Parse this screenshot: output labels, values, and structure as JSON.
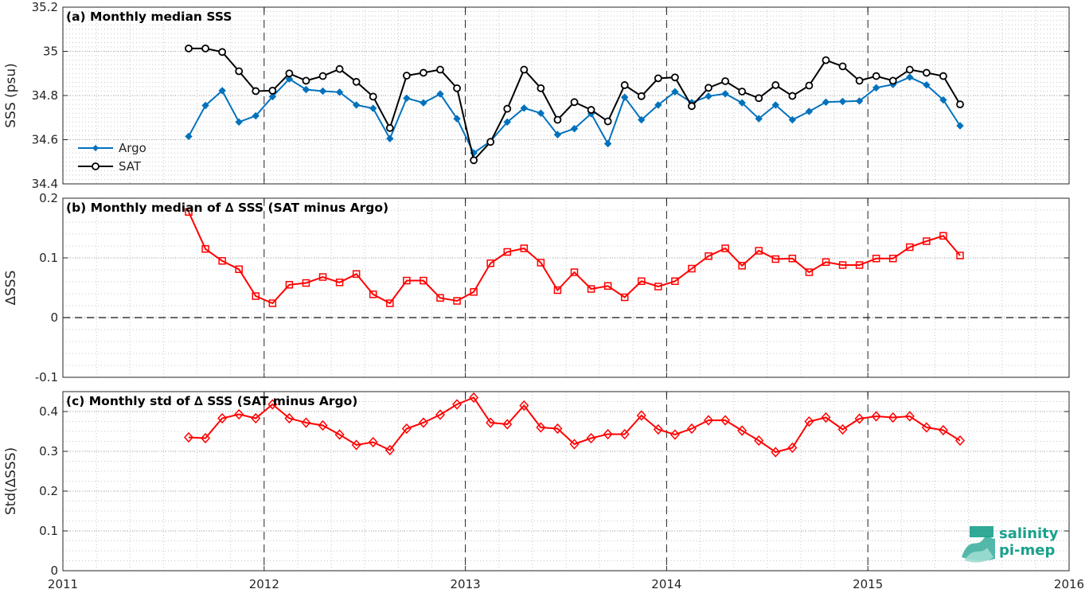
{
  "chart_data": [
    {
      "type": "line",
      "title": "(a) Monthly median SSS",
      "ylabel": "SSS (psu)",
      "ylim": [
        34.4,
        35.2
      ],
      "yticks": [
        "34.4",
        "34.6",
        "34.8",
        "35",
        "35.2"
      ],
      "xlim": [
        2011,
        2016
      ],
      "legend_position": "lower-left",
      "x_start": 2011.625,
      "x_step_years": 0.08333,
      "series": [
        {
          "name": "Argo",
          "color": "#0072BD",
          "marker": "diamond-filled",
          "values": [
            34.615,
            34.755,
            34.822,
            34.68,
            34.708,
            34.795,
            34.875,
            34.827,
            34.82,
            34.815,
            34.757,
            34.742,
            34.605,
            34.788,
            34.767,
            34.807,
            34.695,
            34.54,
            34.593,
            34.68,
            34.743,
            34.72,
            34.623,
            34.65,
            34.718,
            34.582,
            34.792,
            34.69,
            34.757,
            34.817,
            34.768,
            34.797,
            34.808,
            34.767,
            34.695,
            34.757,
            34.69,
            34.728,
            34.77,
            34.773,
            34.775,
            34.835,
            34.85,
            34.883,
            34.848,
            34.78,
            34.663
          ]
        },
        {
          "name": "SAT",
          "color": "#000000",
          "marker": "circle-open",
          "values": [
            35.013,
            35.013,
            34.997,
            34.91,
            34.82,
            34.822,
            34.9,
            34.867,
            34.888,
            34.92,
            34.862,
            34.795,
            34.653,
            34.89,
            34.903,
            34.917,
            34.833,
            34.507,
            34.59,
            34.74,
            34.917,
            34.833,
            34.69,
            34.77,
            34.735,
            34.683,
            34.847,
            34.797,
            34.878,
            34.882,
            34.752,
            34.835,
            34.865,
            34.818,
            34.788,
            34.847,
            34.798,
            34.845,
            34.96,
            34.932,
            34.867,
            34.888,
            34.867,
            34.917,
            34.903,
            34.888,
            34.76
          ]
        }
      ]
    },
    {
      "type": "line",
      "title": "(b) Monthly median of ∆ SSS (SAT minus Argo)",
      "ylabel": "∆SSS",
      "ylim": [
        -0.1,
        0.2
      ],
      "yticks": [
        "-0.1",
        "0",
        "0.1",
        "0.2"
      ],
      "xlim": [
        2011,
        2016
      ],
      "x_start": 2011.625,
      "x_step_years": 0.08333,
      "series": [
        {
          "color": "#FF0000",
          "marker": "square-open",
          "values": [
            0.177,
            0.115,
            0.095,
            0.081,
            0.036,
            0.024,
            0.055,
            0.058,
            0.068,
            0.059,
            0.073,
            0.039,
            0.024,
            0.062,
            0.062,
            0.033,
            0.028,
            0.043,
            0.091,
            0.11,
            0.116,
            0.092,
            0.046,
            0.076,
            0.048,
            0.053,
            0.034,
            0.061,
            0.052,
            0.061,
            0.082,
            0.103,
            0.116,
            0.087,
            0.112,
            0.098,
            0.099,
            0.076,
            0.093,
            0.088,
            0.088,
            0.099,
            0.099,
            0.118,
            0.128,
            0.137,
            0.104
          ]
        }
      ]
    },
    {
      "type": "line",
      "title": "(c) Monthly std of ∆ SSS (SAT minus Argo)",
      "ylabel": "Std(∆SSS)",
      "ylim": [
        0,
        0.45
      ],
      "yticks": [
        "0",
        "0.1",
        "0.2",
        "0.3",
        "0.4"
      ],
      "xlim": [
        2011,
        2016
      ],
      "xticks": [
        "2011",
        "2012",
        "2013",
        "2014",
        "2015",
        "2016"
      ],
      "x_start": 2011.625,
      "x_step_years": 0.08333,
      "series": [
        {
          "color": "#FF0000",
          "marker": "diamond-open",
          "values": [
            0.335,
            0.333,
            0.383,
            0.393,
            0.383,
            0.418,
            0.383,
            0.372,
            0.365,
            0.342,
            0.316,
            0.323,
            0.303,
            0.357,
            0.372,
            0.392,
            0.418,
            0.435,
            0.372,
            0.368,
            0.415,
            0.36,
            0.357,
            0.318,
            0.333,
            0.343,
            0.343,
            0.39,
            0.355,
            0.342,
            0.357,
            0.378,
            0.378,
            0.352,
            0.327,
            0.298,
            0.309,
            0.375,
            0.385,
            0.355,
            0.382,
            0.388,
            0.385,
            0.388,
            0.36,
            0.353,
            0.327
          ]
        }
      ]
    }
  ],
  "logo": {
    "line1": "salinity",
    "line2": "pi-mep",
    "color": "#1aa08c"
  }
}
